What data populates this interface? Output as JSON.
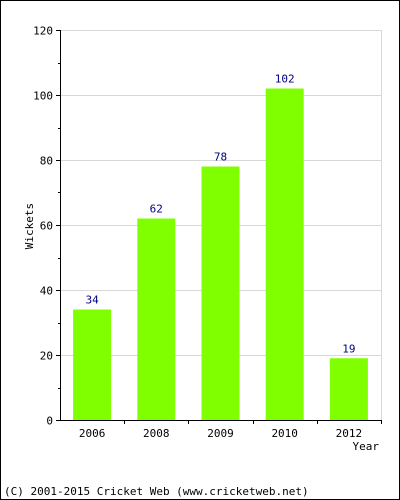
{
  "chart_data": {
    "type": "bar",
    "title": "",
    "xlabel": "Year",
    "ylabel": "Wickets",
    "categories": [
      "2006",
      "2008",
      "2009",
      "2010",
      "2012"
    ],
    "values": [
      34,
      62,
      78,
      102,
      19
    ],
    "ylim": [
      0,
      120
    ],
    "yticks": [
      0,
      20,
      40,
      60,
      80,
      100,
      120
    ],
    "grid": true,
    "data_labels": true,
    "bar_color": "#80ff00",
    "data_label_color": "#000080"
  },
  "footer": {
    "copyright": "(C) 2001-2015 Cricket Web (www.cricketweb.net)"
  }
}
